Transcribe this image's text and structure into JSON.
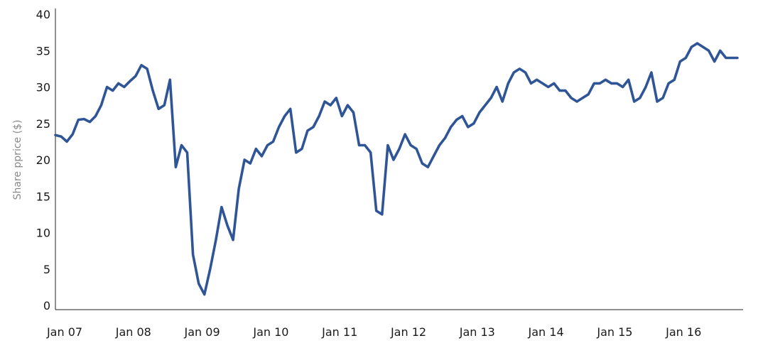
{
  "chart_data": {
    "type": "line",
    "title": "",
    "xlabel": "",
    "ylabel": "Share pprice ($)",
    "xlim": [
      "2007-01",
      "2017-01"
    ],
    "ylim": [
      0,
      40
    ],
    "grid": false,
    "legend": "none",
    "line_color": "#2f5597",
    "y_ticks": [
      "0",
      "5",
      "10",
      "15",
      "20",
      "25",
      "30",
      "35",
      "40"
    ],
    "x_ticks": [
      {
        "date": "2007-01",
        "label": "Jan 07"
      },
      {
        "date": "2008-01",
        "label": "Jan 08"
      },
      {
        "date": "2009-01",
        "label": "Jan 09"
      },
      {
        "date": "2010-01",
        "label": "Jan 10"
      },
      {
        "date": "2011-01",
        "label": "Jan 11"
      },
      {
        "date": "2012-01",
        "label": "Jan 12"
      },
      {
        "date": "2013-01",
        "label": "Jan 13"
      },
      {
        "date": "2014-01",
        "label": "Jan 14"
      },
      {
        "date": "2015-01",
        "label": "Jan 15"
      },
      {
        "date": "2016-01",
        "label": "Jan 16"
      }
    ],
    "series": [
      {
        "x": [
          "2007-01",
          "2007-02",
          "2007-03",
          "2007-04",
          "2007-05",
          "2007-06",
          "2007-07",
          "2007-08",
          "2007-09",
          "2007-10",
          "2007-11",
          "2007-12",
          "2008-01",
          "2008-02",
          "2008-03",
          "2008-04",
          "2008-05",
          "2008-06",
          "2008-07",
          "2008-08",
          "2008-09",
          "2008-10",
          "2008-11",
          "2008-12",
          "2009-01",
          "2009-02",
          "2009-03",
          "2009-04",
          "2009-05",
          "2009-06",
          "2009-07",
          "2009-08",
          "2009-09",
          "2009-10",
          "2009-11",
          "2009-12",
          "2010-01",
          "2010-02",
          "2010-03",
          "2010-04",
          "2010-05",
          "2010-06",
          "2010-07",
          "2010-08",
          "2010-09",
          "2010-10",
          "2010-11",
          "2010-12",
          "2011-01",
          "2011-02",
          "2011-03",
          "2011-04",
          "2011-05",
          "2011-06",
          "2011-07",
          "2011-08",
          "2011-09",
          "2011-10",
          "2011-11",
          "2011-12",
          "2012-01",
          "2012-02",
          "2012-03",
          "2012-04",
          "2012-05",
          "2012-06",
          "2012-07",
          "2012-08",
          "2012-09",
          "2012-10",
          "2012-11",
          "2012-12",
          "2013-01",
          "2013-02",
          "2013-03",
          "2013-04",
          "2013-05",
          "2013-06",
          "2013-07",
          "2013-08",
          "2013-09",
          "2013-10",
          "2013-11",
          "2013-12",
          "2014-01",
          "2014-02",
          "2014-03",
          "2014-04",
          "2014-05",
          "2014-06",
          "2014-07",
          "2014-08",
          "2014-09",
          "2014-10",
          "2014-11",
          "2014-12",
          "2015-01",
          "2015-02",
          "2015-03",
          "2015-04",
          "2015-05",
          "2015-06",
          "2015-07",
          "2015-08",
          "2015-09",
          "2015-10",
          "2015-11",
          "2015-12",
          "2016-01",
          "2016-02",
          "2016-03",
          "2016-04",
          "2016-05",
          "2016-06",
          "2016-07",
          "2016-08",
          "2016-09",
          "2016-10",
          "2016-11",
          "2016-12"
        ],
        "y": [
          23.4,
          23.2,
          22.5,
          23.5,
          25.5,
          25.6,
          25.2,
          26.0,
          27.5,
          30.0,
          29.5,
          30.5,
          30.0,
          30.8,
          31.5,
          33.0,
          32.5,
          29.5,
          27.0,
          27.5,
          31.0,
          19.0,
          22.0,
          21.0,
          7.0,
          3.0,
          1.5,
          5.0,
          9.0,
          13.5,
          11.0,
          9.0,
          16.0,
          20.0,
          19.5,
          21.5,
          20.5,
          22.0,
          22.5,
          24.5,
          26.0,
          27.0,
          21.0,
          21.5,
          24.0,
          24.5,
          26.0,
          28.0,
          27.5,
          28.5,
          26.0,
          27.5,
          26.5,
          22.0,
          22.0,
          21.0,
          13.0,
          12.5,
          22.0,
          20.0,
          21.5,
          23.5,
          22.0,
          21.5,
          19.5,
          19.0,
          20.5,
          22.0,
          23.0,
          24.5,
          25.5,
          26.0,
          24.5,
          25.0,
          26.5,
          27.5,
          28.5,
          30.0,
          28.0,
          30.5,
          32.0,
          32.5,
          32.0,
          30.5,
          31.0,
          30.5,
          30.0,
          30.5,
          29.5,
          29.5,
          28.5,
          28.0,
          28.5,
          29.0,
          30.5,
          30.5,
          31.0,
          30.5,
          30.5,
          30.0,
          31.0,
          28.0,
          28.5,
          30.0,
          32.0,
          28.0,
          28.5,
          30.5,
          31.0,
          33.5,
          34.0,
          35.5,
          36.0,
          35.5,
          35.0,
          33.5,
          35.0,
          34.0,
          34.0,
          34.0
        ]
      }
    ]
  }
}
